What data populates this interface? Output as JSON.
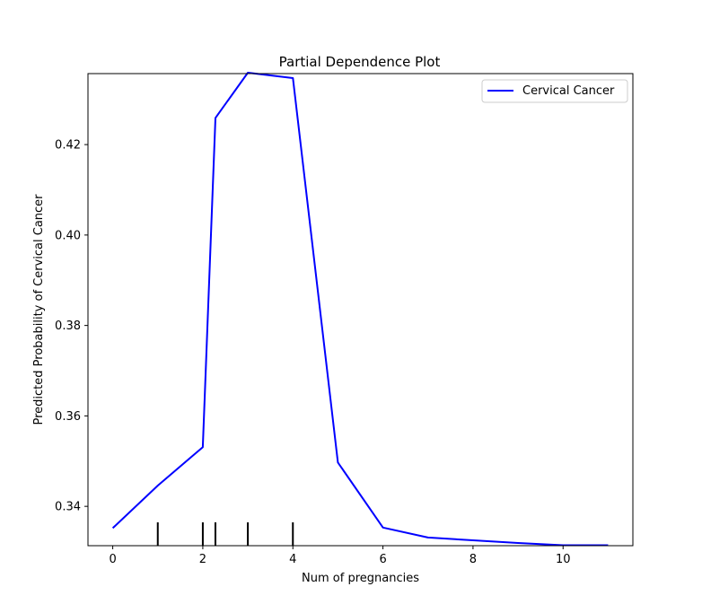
{
  "chart_data": {
    "type": "line",
    "title": "Partial Dependence Plot",
    "xlabel": "Num of pregnancies",
    "ylabel": "Predicted Probability of Cervical Cancer",
    "xlim": [
      -0.55,
      11.55
    ],
    "ylim": [
      0.3313,
      0.4357
    ],
    "xticks": [
      0,
      2,
      4,
      6,
      8,
      10
    ],
    "yticks": [
      0.34,
      0.36,
      0.38,
      0.4,
      0.42
    ],
    "xtick_labels": [
      "0",
      "2",
      "4",
      "6",
      "8",
      "10"
    ],
    "ytick_labels": [
      "0.34",
      "0.36",
      "0.38",
      "0.40",
      "0.42"
    ],
    "legend_position": "top-right",
    "grid": false,
    "series": [
      {
        "name": "Cervical Cancer",
        "color": "#0000ff",
        "x": [
          0,
          1,
          2,
          2.28,
          3,
          4,
          5,
          6,
          7,
          8,
          9,
          10,
          11
        ],
        "y": [
          0.3352,
          0.3446,
          0.3531,
          0.4259,
          0.4359,
          0.4347,
          0.3497,
          0.3353,
          0.3331,
          0.3325,
          0.3319,
          0.3314,
          0.3314
        ]
      }
    ],
    "rug": {
      "color": "#000000",
      "x": [
        1,
        2,
        2.28,
        3,
        4
      ]
    }
  }
}
